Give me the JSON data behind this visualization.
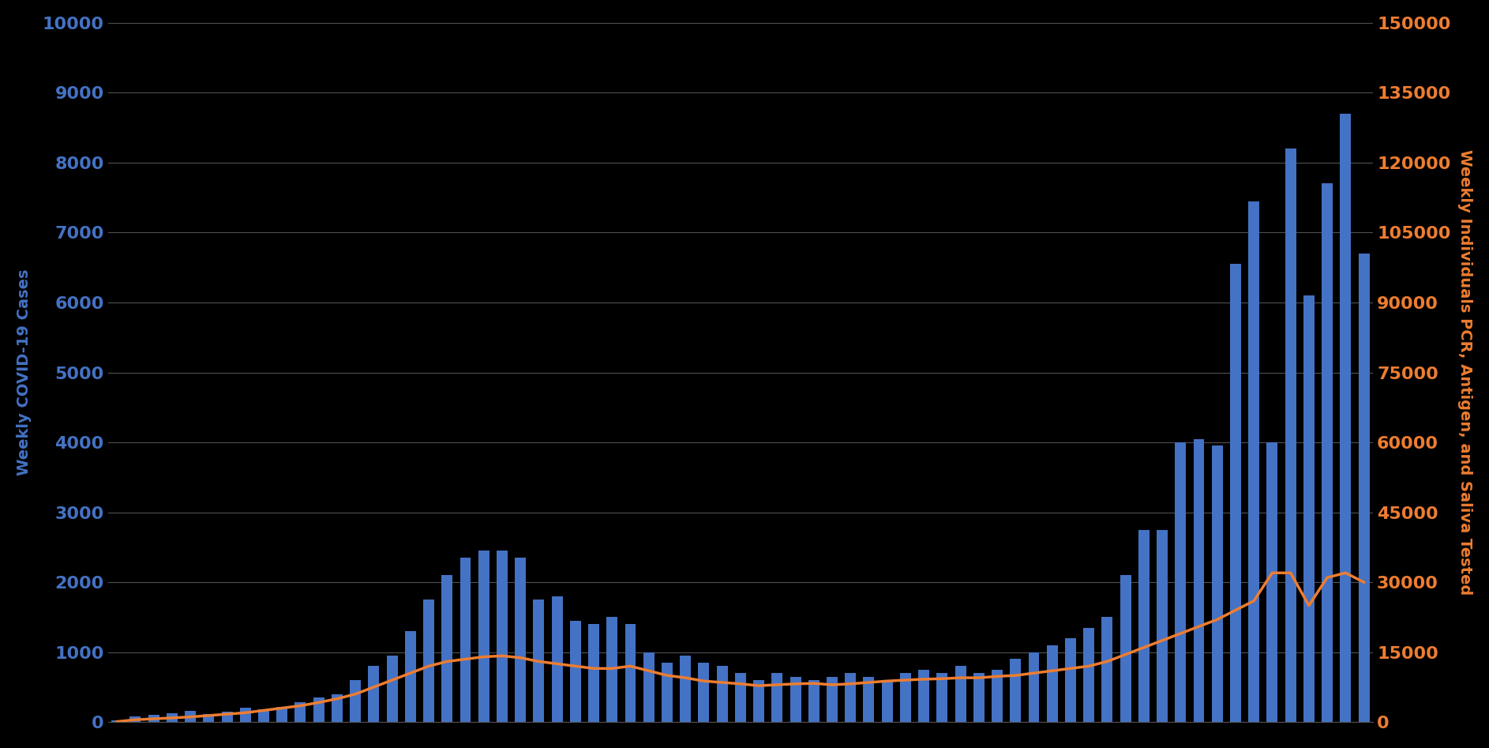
{
  "background_color": "#000000",
  "plot_bg_color": "#000000",
  "bar_color": "#4472C4",
  "line_color": "#ED7D31",
  "left_axis_color": "#4472C4",
  "right_axis_color": "#ED7D31",
  "grid_color": "#505050",
  "left_ylabel": "Weekly COVID-19 Cases",
  "right_ylabel": "Weekly Individuals PCR, Antigen, and Saliva Tested",
  "left_ylim": [
    0,
    10000
  ],
  "right_ylim": [
    0,
    150000
  ],
  "left_yticks": [
    0,
    1000,
    2000,
    3000,
    4000,
    5000,
    6000,
    7000,
    8000,
    9000,
    10000
  ],
  "right_yticks": [
    0,
    15000,
    30000,
    45000,
    60000,
    75000,
    90000,
    105000,
    120000,
    135000,
    150000
  ],
  "bar_values": [
    30,
    80,
    100,
    130,
    160,
    120,
    150,
    200,
    180,
    220,
    280,
    350,
    400,
    600,
    800,
    950,
    1300,
    1750,
    2100,
    2350,
    2450,
    2450,
    2350,
    1750,
    1800,
    1450,
    1400,
    1500,
    1400,
    1000,
    850,
    950,
    850,
    800,
    700,
    600,
    700,
    650,
    600,
    650,
    700,
    650,
    600,
    700,
    750,
    700,
    800,
    700,
    750,
    900,
    1000,
    1100,
    1200,
    1350,
    1500,
    2100,
    2750,
    2750,
    4000,
    4050,
    3950,
    6550,
    7450,
    4000,
    8200,
    6100,
    7700,
    8700,
    6700
  ],
  "line_values": [
    100,
    500,
    700,
    900,
    1100,
    1400,
    1700,
    2000,
    2500,
    3000,
    3500,
    4200,
    5000,
    6000,
    7500,
    9000,
    10500,
    12000,
    13000,
    13500,
    14000,
    14200,
    13800,
    13000,
    12500,
    12000,
    11500,
    11500,
    12000,
    11000,
    10000,
    9500,
    8800,
    8500,
    8200,
    7800,
    8000,
    8200,
    8300,
    8000,
    8200,
    8500,
    8800,
    9000,
    9200,
    9300,
    9500,
    9500,
    9800,
    10000,
    10500,
    11000,
    11500,
    12000,
    13000,
    14500,
    16000,
    17500,
    19000,
    20500,
    22000,
    24000,
    26000,
    32000,
    32000,
    25000,
    31000,
    32000,
    30000
  ],
  "tick_fontsize": 16,
  "ylabel_fontsize": 14,
  "bar_width": 0.6
}
